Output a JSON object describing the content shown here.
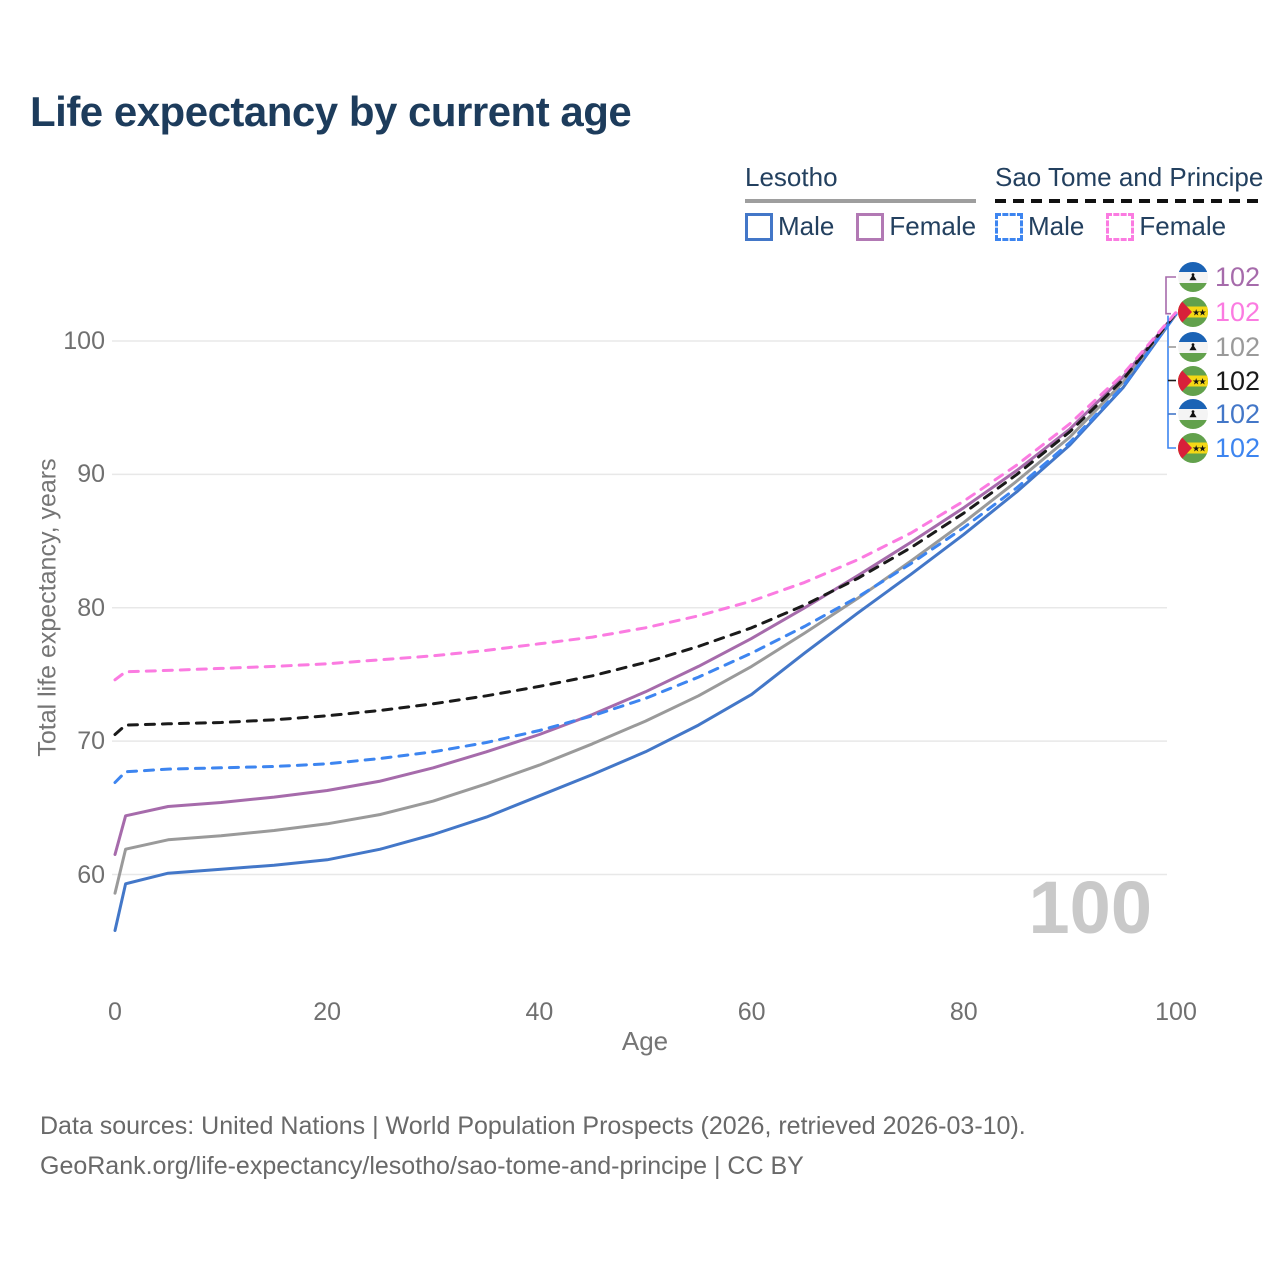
{
  "title": "Life expectancy by current age",
  "legend": {
    "groups": [
      {
        "title": "Lesotho",
        "underline_style": "solid",
        "underline_color": "#9e9e9e",
        "items": [
          {
            "label": "Male",
            "color": "#4377c8",
            "dashed": false
          },
          {
            "label": "Female",
            "color": "#b279b4",
            "dashed": false
          }
        ]
      },
      {
        "title": "Sao Tome and Principe",
        "underline_style": "dashed",
        "underline_color": "#111111",
        "items": [
          {
            "label": "Male",
            "color": "#3d85f0",
            "dashed": true
          },
          {
            "label": "Female",
            "color": "#fb7be1",
            "dashed": true
          }
        ]
      }
    ]
  },
  "chart_data": {
    "type": "line",
    "title": "Life expectancy by current age",
    "xlabel": "Age",
    "ylabel": "Total life expectancy, years",
    "xticks": [
      0,
      20,
      40,
      60,
      80,
      100
    ],
    "yticks": [
      60,
      70,
      80,
      90,
      100
    ],
    "xlim": [
      0,
      100
    ],
    "ylim": [
      55,
      104
    ],
    "grid": "horizontal",
    "legend_position": "top-right",
    "x": [
      0,
      1,
      5,
      10,
      15,
      20,
      25,
      30,
      35,
      40,
      45,
      50,
      55,
      60,
      65,
      70,
      75,
      80,
      85,
      90,
      95,
      100
    ],
    "series": [
      {
        "name": "Lesotho Male",
        "country": "Lesotho",
        "sex": "Male",
        "style": "solid",
        "color": "#4377c8",
        "values": [
          55.8,
          59.3,
          60.1,
          60.4,
          60.7,
          61.1,
          61.9,
          63.0,
          64.3,
          65.9,
          67.5,
          69.2,
          71.2,
          73.5,
          76.6,
          79.6,
          82.5,
          85.5,
          88.7,
          92.2,
          96.5,
          102.0
        ]
      },
      {
        "name": "Lesotho Both sexes",
        "country": "Lesotho",
        "sex": "Both",
        "style": "solid",
        "color": "#9a9a9a",
        "values": [
          58.6,
          61.9,
          62.6,
          62.9,
          63.3,
          63.8,
          64.5,
          65.5,
          66.8,
          68.2,
          69.8,
          71.5,
          73.4,
          75.6,
          78.1,
          80.7,
          83.5,
          86.4,
          89.5,
          92.8,
          96.9,
          102.05
        ]
      },
      {
        "name": "Lesotho Female",
        "country": "Lesotho",
        "sex": "Female",
        "style": "solid",
        "color": "#a66bab",
        "values": [
          61.5,
          64.4,
          65.1,
          65.4,
          65.8,
          66.3,
          67.0,
          68.0,
          69.2,
          70.5,
          72.0,
          73.7,
          75.6,
          77.7,
          80.0,
          82.4,
          84.9,
          87.5,
          90.3,
          93.4,
          97.3,
          102.1
        ]
      },
      {
        "name": "Sao Tome and Principe Male",
        "country": "Sao Tome and Principe",
        "sex": "Male",
        "style": "dashed",
        "color": "#3d85f0",
        "values": [
          66.9,
          67.7,
          67.9,
          68.0,
          68.1,
          68.3,
          68.7,
          69.2,
          69.9,
          70.8,
          71.9,
          73.2,
          74.8,
          76.6,
          78.6,
          80.8,
          83.3,
          86.0,
          89.0,
          92.4,
          96.6,
          102.0
        ]
      },
      {
        "name": "Sao Tome and Principe Both sexes",
        "country": "Sao Tome and Principe",
        "sex": "Both",
        "style": "dashed",
        "color": "#1a1a1a",
        "values": [
          70.5,
          71.2,
          71.3,
          71.4,
          71.6,
          71.9,
          72.3,
          72.8,
          73.4,
          74.1,
          74.9,
          75.9,
          77.1,
          78.5,
          80.2,
          82.2,
          84.5,
          87.1,
          90.0,
          93.2,
          97.1,
          102.1
        ]
      },
      {
        "name": "Sao Tome and Principe Female",
        "country": "Sao Tome and Principe",
        "sex": "Female",
        "style": "dashed",
        "color": "#fb7be1",
        "values": [
          74.6,
          75.2,
          75.3,
          75.45,
          75.6,
          75.8,
          76.1,
          76.4,
          76.8,
          77.3,
          77.8,
          78.5,
          79.4,
          80.5,
          81.9,
          83.6,
          85.6,
          88.0,
          90.7,
          93.8,
          97.5,
          102.15
        ]
      }
    ]
  },
  "end_labels": {
    "rows": [
      {
        "flag": "lesotho",
        "series": "Lesotho Female",
        "value": "102",
        "color": "#a66bab"
      },
      {
        "flag": "sao-tome",
        "series": "Sao Tome and Principe Female",
        "value": "102",
        "color": "#fb7be1"
      },
      {
        "flag": "lesotho",
        "series": "Lesotho Both sexes",
        "value": "102",
        "color": "#9a9a9a"
      },
      {
        "flag": "sao-tome",
        "series": "Sao Tome and Principe Both sexes",
        "value": "102",
        "color": "#1a1a1a"
      },
      {
        "flag": "lesotho",
        "series": "Lesotho Male",
        "value": "102",
        "color": "#4377c8"
      },
      {
        "flag": "sao-tome",
        "series": "Sao Tome and Principe Male",
        "value": "102",
        "color": "#3d85f0"
      }
    ]
  },
  "watermark": "100",
  "footer": {
    "line1": "Data sources: United Nations | World Population Prospects (2026, retrieved 2026-03-10).",
    "line2": "GeoRank.org/life-expectancy/lesotho/sao-tome-and-principe | CC BY"
  }
}
